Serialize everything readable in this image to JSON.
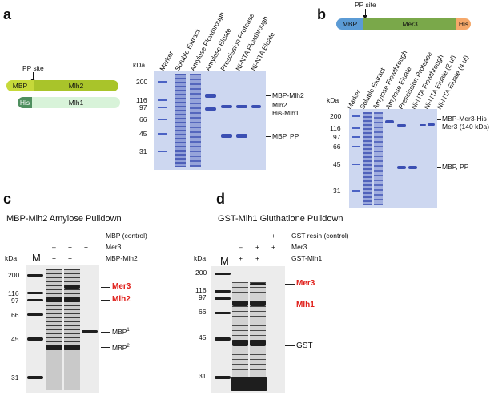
{
  "panel_a": {
    "letter": "a",
    "pp_site": "PP site",
    "construct1": {
      "tag": "MBP",
      "protein": "Mlh2",
      "tag_color": "#c6d93a",
      "protein_color": "#a9c42a"
    },
    "construct2": {
      "tag": "His",
      "protein": "Mlh1",
      "tag_color": "#4f8f5f",
      "protein_color": "#d8f3d9"
    },
    "kda": "kDa",
    "lanes": [
      "Marker",
      "Soluble Extract",
      "Amylose Flowthrough",
      "Amylose Eluate",
      "Prescission Protease",
      "Ni-NTA Flowthrough",
      "Ni-NTA Eluate"
    ],
    "markers": [
      "200",
      "116",
      "97",
      "66",
      "45",
      "31"
    ],
    "bands": [
      "MBP-Mlh2",
      "Mlh2",
      "His-Mlh1",
      "MBP, PP"
    ]
  },
  "panel_b": {
    "letter": "b",
    "pp_site": "PP site",
    "construct": {
      "tag": "MBP",
      "protein": "Mer3",
      "tail": "His",
      "tag_color": "#5b9bd5",
      "protein_color": "#7aa84a",
      "tail_color": "#f5a86a"
    },
    "kda": "kDa",
    "lanes": [
      "Marker",
      "Soluble Extract",
      "Amylose Flowthrough",
      "Amylose Eluate",
      "Prescission Protease",
      "Ni-NTA Flowthrough",
      "Ni-NTA Eluate (2 ul)",
      "Ni-NTA Eluate (4 ul)"
    ],
    "markers": [
      "200",
      "116",
      "97",
      "66",
      "45",
      "31"
    ],
    "bands": [
      "MBP-Mer3-His",
      "Mer3 (140 kDa)",
      "MBP, PP"
    ]
  },
  "panel_c": {
    "letter": "c",
    "title": "MBP-Mlh2 Amylose Pulldown",
    "conditions": [
      "MBP (control)",
      "Mer3",
      "MBP-Mlh2"
    ],
    "signs": {
      "row1": [
        "",
        "",
        "+"
      ],
      "row2": [
        "–",
        "+",
        "+"
      ],
      "row3": [
        "+",
        "+",
        ""
      ]
    },
    "kda": "kDa",
    "m_label": "M",
    "markers": [
      "200",
      "116",
      "97",
      "66",
      "45",
      "31"
    ],
    "band_mer3": "Mer3",
    "band_mlh2": "Mlh2",
    "band_mbp1": "MBP",
    "band_mbp1_sup": "1",
    "band_mbp2": "MBP",
    "band_mbp2_sup": "2"
  },
  "panel_d": {
    "letter": "d",
    "title": "GST-Mlh1 Gluthatione Pulldown",
    "conditions": [
      "GST resin (control)",
      "Mer3",
      "GST-Mlh1"
    ],
    "signs": {
      "row1": [
        "",
        "",
        "+"
      ],
      "row2": [
        "–",
        "+",
        "+"
      ],
      "row3": [
        "+",
        "+",
        ""
      ]
    },
    "kda": "kDa",
    "m_label": "M",
    "markers": [
      "200",
      "116",
      "97",
      "66",
      "45",
      "31"
    ],
    "band_mer3": "Mer3",
    "band_mlh1": "Mlh1",
    "band_gst": "GST"
  },
  "colors": {
    "highlight_red": "#e0201b",
    "coomassie": "#3b4fb3"
  }
}
